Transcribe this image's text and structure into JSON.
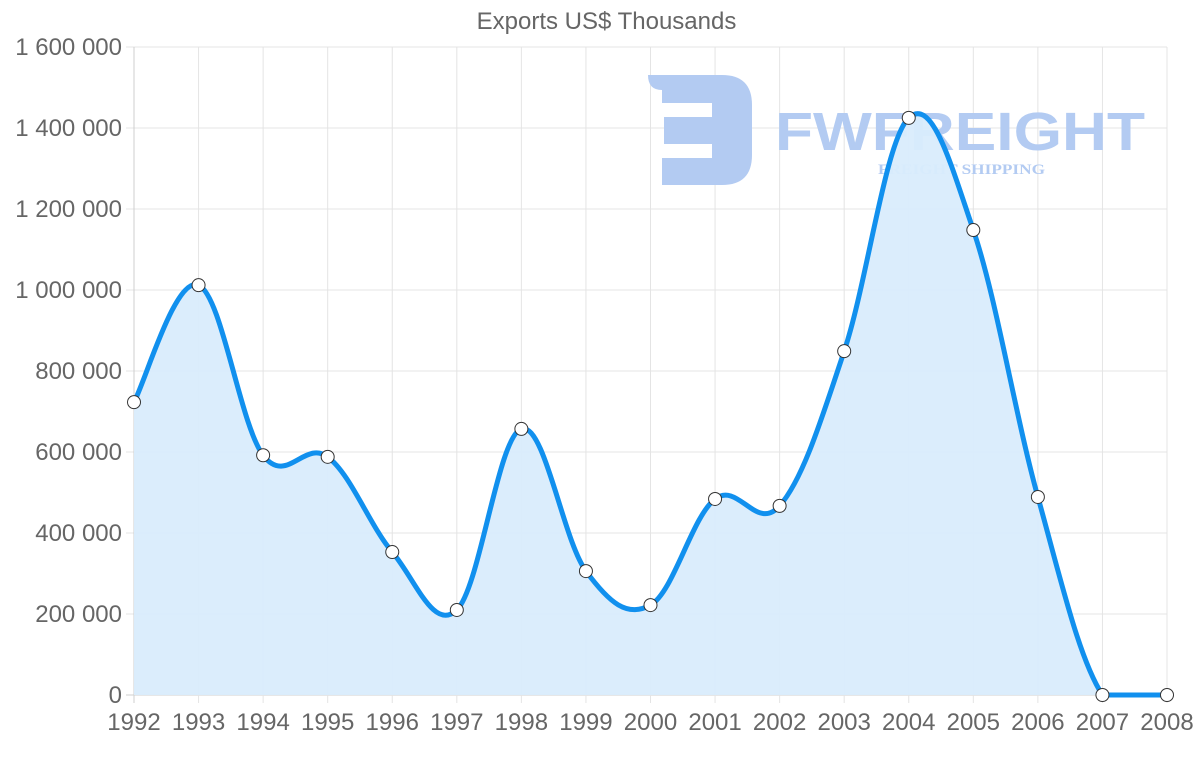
{
  "chart_data": {
    "type": "line",
    "title": "Exports US$ Thousands",
    "xlabel": "",
    "ylabel": "",
    "categories": [
      "1992",
      "1993",
      "1994",
      "1995",
      "1996",
      "1997",
      "1998",
      "1999",
      "2000",
      "2001",
      "2002",
      "2003",
      "2004",
      "2005",
      "2006",
      "2007",
      "2008"
    ],
    "series": [
      {
        "name": "Exports US$ Thousands",
        "values": [
          723000,
          1012000,
          592000,
          588000,
          353000,
          210000,
          657000,
          306000,
          222000,
          484000,
          467000,
          849000,
          1425000,
          1148000,
          489000,
          0,
          0
        ],
        "color": "#1190ee",
        "fill": "#d9ecfc"
      }
    ],
    "ylim": [
      0,
      1600000
    ],
    "yticks": [
      "0",
      "200 000",
      "400 000",
      "600 000",
      "800 000",
      "1 000 000",
      "1 200 000",
      "1 400 000",
      "1 600 000"
    ],
    "grid": true,
    "legend": "none",
    "area_fill": true
  },
  "watermark": {
    "brand": "FWFREIGHT",
    "tagline": "FREIGHT SHIPPING",
    "color": "#b3cbf2"
  }
}
